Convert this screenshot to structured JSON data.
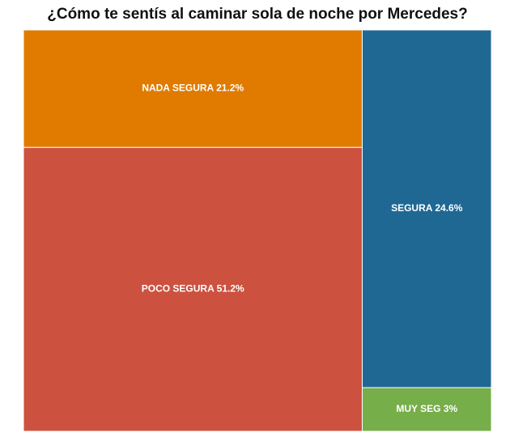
{
  "chart_data": {
    "type": "treemap",
    "title": "¿Cómo te sentís al caminar sola de noche por Mercedes?",
    "categories": [
      "NADA SEGURA",
      "POCO SEGURA",
      "SEGURA",
      "MUY SEG"
    ],
    "values": [
      21.2,
      51.2,
      24.6,
      3
    ],
    "value_labels": [
      "21.2%",
      "51.2%",
      "24.6%",
      "3%"
    ],
    "colors": [
      "#e07b00",
      "#cc513f",
      "#1f6894",
      "#76ae4a"
    ]
  }
}
